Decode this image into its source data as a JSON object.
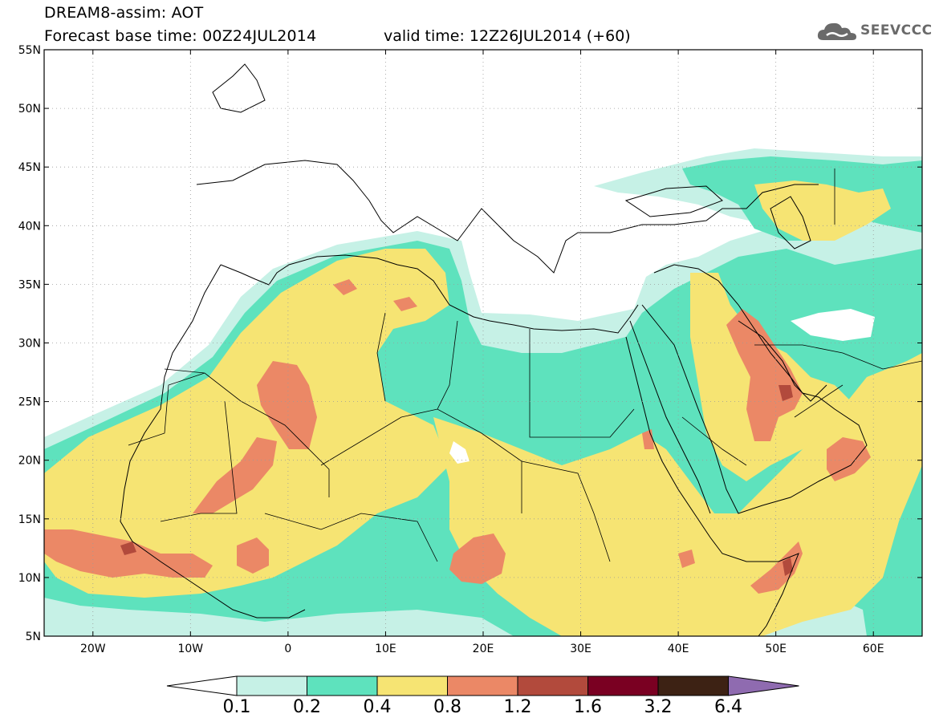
{
  "header": {
    "title": "DREAM8-assim: AOT",
    "base_time": "Forecast base time: 00Z24JUL2014",
    "valid_time": "valid time: 12Z26JUL2014 (+60)",
    "logo_text": "SEEVCCC",
    "logo_icon": "cloud-logo-icon"
  },
  "map": {
    "lon_range": [
      -25,
      65
    ],
    "lat_range": [
      5,
      55
    ],
    "lon_ticks": [
      {
        "value": -20,
        "label": "20W"
      },
      {
        "value": -10,
        "label": "10W"
      },
      {
        "value": 0,
        "label": "0"
      },
      {
        "value": 10,
        "label": "10E"
      },
      {
        "value": 20,
        "label": "20E"
      },
      {
        "value": 30,
        "label": "30E"
      },
      {
        "value": 40,
        "label": "40E"
      },
      {
        "value": 50,
        "label": "50E"
      },
      {
        "value": 60,
        "label": "60E"
      }
    ],
    "lat_ticks": [
      {
        "value": 55,
        "label": "55N"
      },
      {
        "value": 50,
        "label": "50N"
      },
      {
        "value": 45,
        "label": "45N"
      },
      {
        "value": 40,
        "label": "40N"
      },
      {
        "value": 35,
        "label": "35N"
      },
      {
        "value": 30,
        "label": "30N"
      },
      {
        "value": 25,
        "label": "25N"
      },
      {
        "value": 20,
        "label": "20N"
      },
      {
        "value": 15,
        "label": "15N"
      },
      {
        "value": 10,
        "label": "10N"
      },
      {
        "value": 5,
        "label": "5N"
      }
    ],
    "grid": "dotted"
  },
  "colorbar": {
    "levels": [
      "0.1",
      "0.2",
      "0.4",
      "0.8",
      "1.2",
      "1.6",
      "3.2",
      "6.4"
    ],
    "colors": [
      "#ffffff",
      "#c6f1e6",
      "#5ee2bd",
      "#f6e473",
      "#eb8866",
      "#b24a3c",
      "#7a0022",
      "#3d2214",
      "#8f6bb0"
    ]
  },
  "colors": {
    "aot_0_1": "#c6f1e6",
    "aot_0_2": "#5ee2bd",
    "aot_0_4": "#f6e473",
    "aot_0_8": "#eb8866",
    "aot_1_2": "#b24a3c"
  }
}
